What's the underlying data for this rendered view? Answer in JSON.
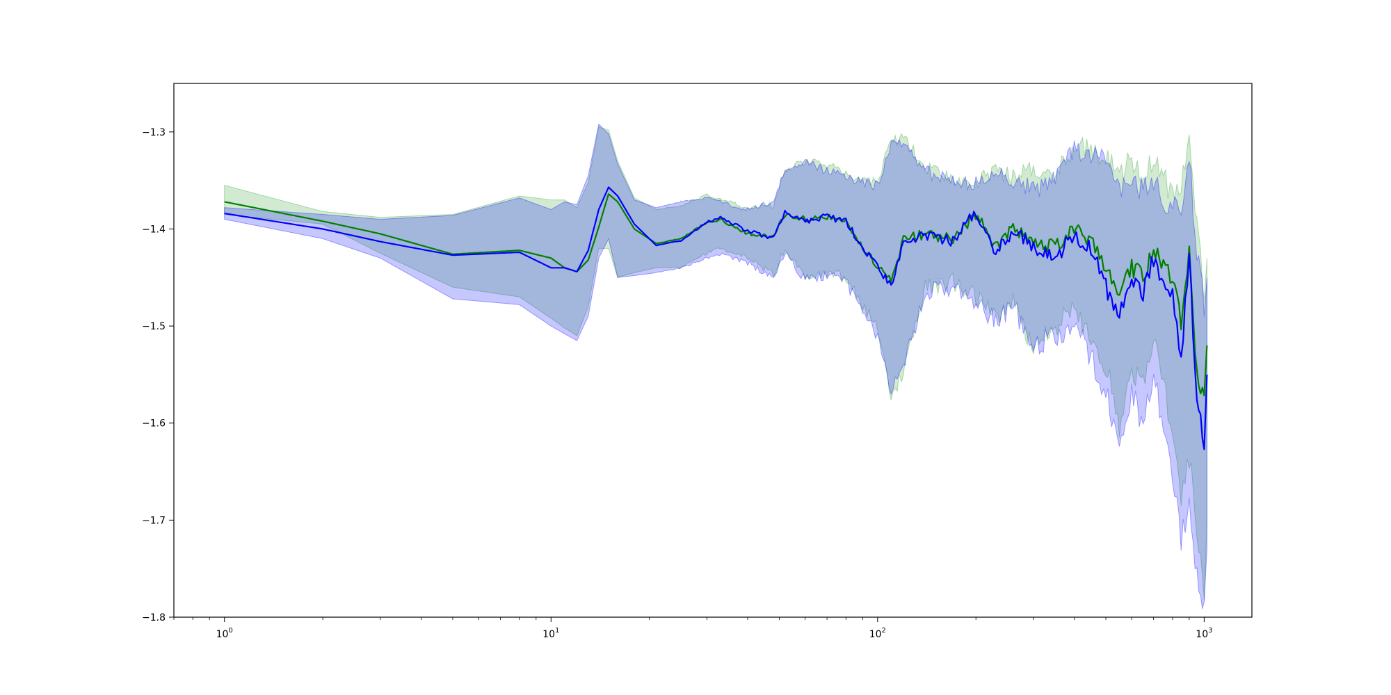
{
  "chart_data": {
    "type": "line",
    "title": "",
    "xlabel": "",
    "ylabel": "",
    "xscale": "log",
    "xlim": [
      0.7,
      1400
    ],
    "ylim": [
      -1.8,
      -1.25
    ],
    "grid": false,
    "legend": "none",
    "x_ticks": [
      {
        "base": "10",
        "exp": "0",
        "value": 1
      },
      {
        "base": "10",
        "exp": "1",
        "value": 10
      },
      {
        "base": "10",
        "exp": "2",
        "value": 100
      },
      {
        "base": "10",
        "exp": "3",
        "value": 1000
      }
    ],
    "y_ticks": [
      {
        "label": "−1.3",
        "value": -1.3
      },
      {
        "label": "−1.4",
        "value": -1.4
      },
      {
        "label": "−1.5",
        "value": -1.5
      },
      {
        "label": "−1.6",
        "value": -1.6
      },
      {
        "label": "−1.7",
        "value": -1.7
      },
      {
        "label": "−1.8",
        "value": -1.8
      }
    ],
    "series": [
      {
        "color": "#008000",
        "band_color": "#2ca02c",
        "x": [
          1,
          2,
          3,
          5,
          8,
          10,
          11,
          12,
          13,
          14,
          15,
          16,
          18,
          21,
          25,
          30,
          33,
          40,
          48,
          52,
          60,
          70,
          80,
          90,
          100,
          110,
          120,
          140,
          170,
          200,
          230,
          260,
          300,
          350,
          400,
          450,
          500,
          550,
          600,
          650,
          700,
          750,
          800,
          850,
          900,
          950,
          1000,
          1020
        ],
        "y": [
          -1.372,
          -1.392,
          -1.405,
          -1.426,
          -1.422,
          -1.43,
          -1.44,
          -1.444,
          -1.432,
          -1.398,
          -1.364,
          -1.372,
          -1.4,
          -1.415,
          -1.41,
          -1.393,
          -1.39,
          -1.405,
          -1.408,
          -1.385,
          -1.39,
          -1.388,
          -1.393,
          -1.418,
          -1.44,
          -1.455,
          -1.41,
          -1.405,
          -1.41,
          -1.385,
          -1.42,
          -1.4,
          -1.41,
          -1.42,
          -1.4,
          -1.41,
          -1.44,
          -1.47,
          -1.44,
          -1.45,
          -1.42,
          -1.44,
          -1.45,
          -1.5,
          -1.42,
          -1.55,
          -1.58,
          -1.52
        ],
        "upper": [
          -1.355,
          -1.382,
          -1.388,
          -1.385,
          -1.366,
          -1.37,
          -1.37,
          -1.378,
          -1.352,
          -1.295,
          -1.298,
          -1.33,
          -1.368,
          -1.38,
          -1.376,
          -1.365,
          -1.37,
          -1.378,
          -1.375,
          -1.34,
          -1.33,
          -1.335,
          -1.342,
          -1.35,
          -1.35,
          -1.31,
          -1.305,
          -1.338,
          -1.348,
          -1.35,
          -1.34,
          -1.345,
          -1.34,
          -1.345,
          -1.315,
          -1.318,
          -1.325,
          -1.34,
          -1.33,
          -1.34,
          -1.33,
          -1.35,
          -1.36,
          -1.36,
          -1.31,
          -1.4,
          -1.46,
          -1.43
        ],
        "lower": [
          -1.385,
          -1.395,
          -1.425,
          -1.46,
          -1.47,
          -1.492,
          -1.502,
          -1.51,
          -1.48,
          -1.42,
          -1.42,
          -1.45,
          -1.445,
          -1.44,
          -1.44,
          -1.425,
          -1.42,
          -1.43,
          -1.447,
          -1.42,
          -1.45,
          -1.445,
          -1.45,
          -1.48,
          -1.5,
          -1.575,
          -1.545,
          -1.46,
          -1.455,
          -1.47,
          -1.49,
          -1.475,
          -1.525,
          -1.5,
          -1.485,
          -1.51,
          -1.54,
          -1.6,
          -1.54,
          -1.56,
          -1.51,
          -1.55,
          -1.62,
          -1.68,
          -1.63,
          -1.72,
          -1.77,
          -1.7
        ]
      },
      {
        "color": "#0000ff",
        "band_color": "#0000ff",
        "x": [
          1,
          2,
          3,
          5,
          8,
          10,
          11,
          12,
          13,
          14,
          15,
          16,
          18,
          21,
          25,
          30,
          33,
          40,
          48,
          52,
          60,
          70,
          80,
          90,
          100,
          110,
          120,
          140,
          170,
          200,
          230,
          260,
          300,
          350,
          400,
          450,
          500,
          550,
          600,
          650,
          700,
          750,
          800,
          850,
          900,
          950,
          1000,
          1020
        ],
        "y": [
          -1.384,
          -1.4,
          -1.413,
          -1.427,
          -1.424,
          -1.44,
          -1.44,
          -1.444,
          -1.422,
          -1.38,
          -1.357,
          -1.366,
          -1.395,
          -1.417,
          -1.412,
          -1.393,
          -1.388,
          -1.402,
          -1.41,
          -1.382,
          -1.392,
          -1.387,
          -1.392,
          -1.42,
          -1.44,
          -1.458,
          -1.412,
          -1.406,
          -1.412,
          -1.383,
          -1.425,
          -1.402,
          -1.418,
          -1.43,
          -1.405,
          -1.42,
          -1.46,
          -1.49,
          -1.455,
          -1.465,
          -1.43,
          -1.46,
          -1.47,
          -1.53,
          -1.43,
          -1.58,
          -1.62,
          -1.55
        ],
        "upper": [
          -1.378,
          -1.385,
          -1.39,
          -1.386,
          -1.368,
          -1.38,
          -1.372,
          -1.375,
          -1.345,
          -1.292,
          -1.302,
          -1.333,
          -1.37,
          -1.378,
          -1.372,
          -1.368,
          -1.372,
          -1.38,
          -1.372,
          -1.338,
          -1.33,
          -1.34,
          -1.345,
          -1.352,
          -1.355,
          -1.312,
          -1.31,
          -1.342,
          -1.35,
          -1.352,
          -1.345,
          -1.35,
          -1.36,
          -1.35,
          -1.32,
          -1.325,
          -1.33,
          -1.36,
          -1.35,
          -1.36,
          -1.35,
          -1.37,
          -1.38,
          -1.38,
          -1.33,
          -1.42,
          -1.48,
          -1.45
        ],
        "lower": [
          -1.39,
          -1.41,
          -1.43,
          -1.472,
          -1.478,
          -1.5,
          -1.508,
          -1.515,
          -1.49,
          -1.43,
          -1.41,
          -1.45,
          -1.448,
          -1.445,
          -1.44,
          -1.43,
          -1.425,
          -1.435,
          -1.45,
          -1.425,
          -1.452,
          -1.448,
          -1.455,
          -1.485,
          -1.51,
          -1.57,
          -1.54,
          -1.465,
          -1.46,
          -1.475,
          -1.495,
          -1.48,
          -1.52,
          -1.51,
          -1.5,
          -1.53,
          -1.57,
          -1.62,
          -1.57,
          -1.6,
          -1.55,
          -1.6,
          -1.66,
          -1.72,
          -1.68,
          -1.76,
          -1.78,
          -1.73
        ]
      }
    ]
  }
}
